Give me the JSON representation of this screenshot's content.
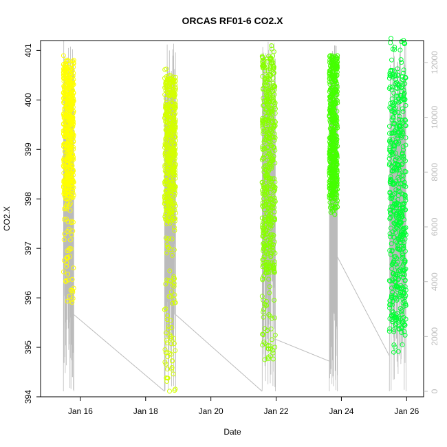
{
  "chart_data": {
    "type": "scatter",
    "title": "ORCAS RF01-6 CO2.X",
    "xlabel": "Date",
    "ylabel": "CO2.X",
    "x_tick_labels": [
      "Jan 16",
      "Jan 18",
      "Jan 20",
      "Jan 22",
      "Jan 24",
      "Jan 26"
    ],
    "x_ticks_days": [
      16,
      18,
      20,
      22,
      24,
      26
    ],
    "xlim_days": [
      14.78,
      26.52
    ],
    "ylim": [
      394.0,
      401.2
    ],
    "y_ticks": [
      394,
      395,
      396,
      397,
      398,
      399,
      400,
      401
    ],
    "y_right_ticks": [
      0,
      2000,
      4000,
      6000,
      8000,
      10000,
      12000
    ],
    "y_right_lim": [
      -200,
      12800
    ],
    "right_axis_color": "#bbbbbb",
    "altitude_line_color": "#bbbbbb",
    "flights": [
      {
        "id": "RF01",
        "color": "#ffff00",
        "start": 15.48,
        "end": 15.8,
        "co2_range": [
          395.9,
          400.95
        ],
        "dense_range": [
          398.0,
          400.8
        ],
        "alt_end_anchor": 1000
      },
      {
        "id": "RF02",
        "color": "#d4ff00",
        "start": 18.58,
        "end": 18.92,
        "co2_range": [
          394.1,
          400.65
        ],
        "dense_range": [
          397.5,
          400.5
        ],
        "alt_end_anchor": 1000
      },
      {
        "id": "RF03",
        "color": "#88ff00",
        "start": 21.57,
        "end": 21.98,
        "co2_range": [
          394.7,
          401.1
        ],
        "dense_range": [
          396.5,
          400.9
        ],
        "alt_end_anchor": 2200
      },
      {
        "id": "RF04",
        "color": "#44ff00",
        "start": 23.63,
        "end": 23.88,
        "co2_range": [
          397.6,
          400.95
        ],
        "dense_range": [
          398.0,
          400.9
        ],
        "alt_end_anchor": 2900
      },
      {
        "id": "RF05",
        "color": "#00ff33",
        "start": 25.47,
        "end": 25.98,
        "co2_range": [
          394.9,
          401.3
        ],
        "dense_range": [
          395.3,
          400.6
        ],
        "alt_end_anchor": 1200
      }
    ],
    "altitude_connectors": [
      {
        "from_day": 15.8,
        "from_alt": 2800,
        "to_day": 18.58,
        "to_alt": 0
      },
      {
        "from_day": 18.92,
        "from_alt": 2800,
        "to_day": 21.57,
        "to_alt": 0
      },
      {
        "from_day": 21.98,
        "from_alt": 1900,
        "to_day": 23.63,
        "to_alt": 1100
      },
      {
        "from_day": 23.88,
        "from_alt": 4900,
        "to_day": 25.47,
        "to_alt": 1300
      }
    ],
    "grid": false,
    "legend": "none"
  }
}
